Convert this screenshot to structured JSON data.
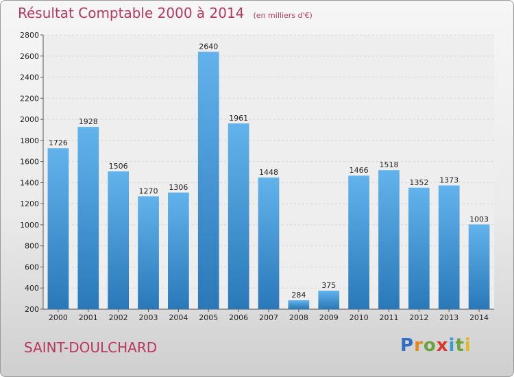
{
  "header": {
    "title": "Résultat Comptable 2000 à 2014",
    "subtitle": "(en milliers d'€)"
  },
  "footer": {
    "city": "SAINT-DOULCHARD",
    "logo_letters": [
      "P",
      "r",
      "o",
      "x",
      "i",
      "t",
      "i"
    ]
  },
  "colors": {
    "title": "#b8375f",
    "bar_top": "#62b3ec",
    "bar_bottom": "#2a78b8",
    "grid": "#d6d6d6"
  },
  "chart_data": {
    "type": "bar",
    "title": "Résultat Comptable 2000 à 2014",
    "subtitle": "(en milliers d'€)",
    "xlabel": "",
    "ylabel": "",
    "categories": [
      "2000",
      "2001",
      "2002",
      "2003",
      "2004",
      "2005",
      "2006",
      "2007",
      "2008",
      "2009",
      "2010",
      "2011",
      "2012",
      "2013",
      "2014"
    ],
    "values": [
      1726,
      1928,
      1506,
      1270,
      1306,
      2640,
      1961,
      1448,
      284,
      375,
      1466,
      1518,
      1352,
      1373,
      1003
    ],
    "ylim": [
      200,
      2800
    ],
    "yticks": [
      200,
      400,
      600,
      800,
      1000,
      1200,
      1400,
      1600,
      1800,
      2000,
      2200,
      2400,
      2600,
      2800
    ],
    "grid": true,
    "legend": "none"
  }
}
